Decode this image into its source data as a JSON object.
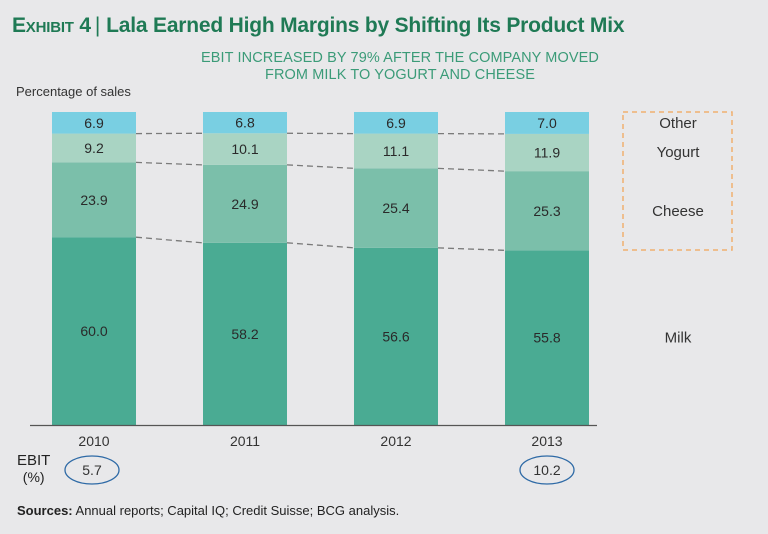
{
  "header": {
    "exhibit": "Exhibit 4",
    "separator": "|",
    "title": "Lala Earned High Margins by Shifting Its Product Mix",
    "subtitle_line1": "EBIT INCREASED BY 79% AFTER THE COMPANY MOVED",
    "subtitle_line2": "FROM MILK TO YOGURT AND CHEESE"
  },
  "ebit_label": {
    "line1": "EBIT",
    "line2": "(%)"
  },
  "sources": {
    "label": "Sources:",
    "text": " Annual reports; Capital IQ; Credit Suisse; BCG analysis."
  },
  "chart_data": {
    "type": "bar",
    "stacked": true,
    "title": "EBIT INCREASED BY 79% AFTER THE COMPANY MOVED FROM MILK TO YOGURT AND CHEESE",
    "ylabel": "Percentage of sales",
    "xlabel": "",
    "ylim": [
      0,
      100
    ],
    "grid": false,
    "legend": "right",
    "categories": [
      "2010",
      "2011",
      "2012",
      "2013"
    ],
    "series": [
      {
        "name": "Milk",
        "color": "#4aab93",
        "values": [
          60.0,
          58.2,
          56.6,
          55.8
        ]
      },
      {
        "name": "Cheese",
        "color": "#7bbfaa",
        "values": [
          23.9,
          24.9,
          25.4,
          25.3
        ]
      },
      {
        "name": "Yogurt",
        "color": "#a9d4c3",
        "values": [
          9.2,
          10.1,
          11.1,
          11.9
        ]
      },
      {
        "name": "Other",
        "color": "#79cfe2",
        "values": [
          6.9,
          6.8,
          6.9,
          7.0
        ]
      }
    ],
    "ebit_pct": {
      "2010": "5.7",
      "2013": "10.2"
    },
    "highlight_box": {
      "series": [
        "Other",
        "Yogurt",
        "Cheese"
      ],
      "color": "#f0b070"
    }
  }
}
